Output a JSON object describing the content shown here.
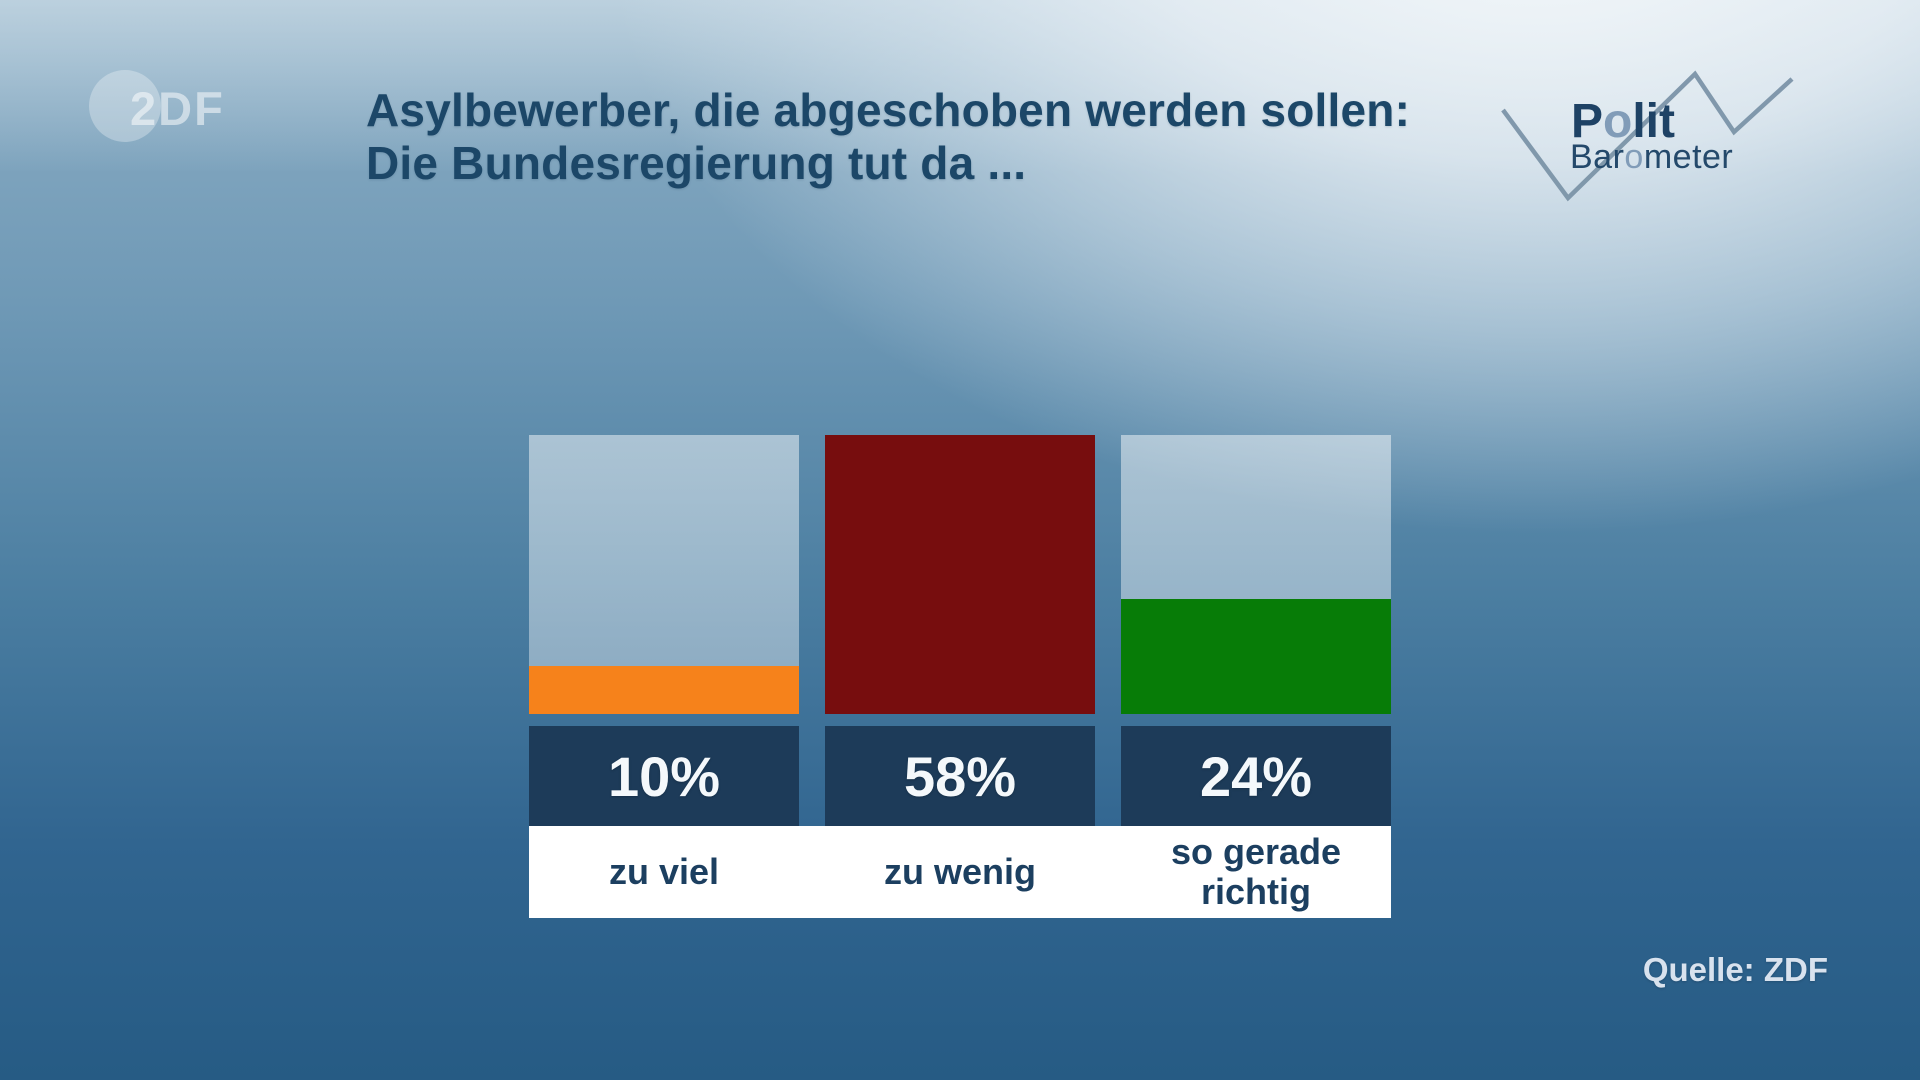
{
  "header": {
    "title_line1": "Asylbewerber, die abgeschoben werden sollen:",
    "title_line2": "Die Bundesregierung tut da ...",
    "zdf_logo_text": "2DF",
    "polit_logo": {
      "part1": "P",
      "accent1": "o",
      "part2": "lit",
      "part3": "Bar",
      "accent2": "o",
      "part4": "meter"
    }
  },
  "source_label": "Quelle: ZDF",
  "colors": {
    "title_text": "#1c4768",
    "value_badge_bg": "#1d3b59",
    "value_text": "#f4f8fb",
    "category_text": "#1c3f60",
    "label_band_bg": "#ffffff",
    "bar_track": "rgba(255,255,255,0.43)",
    "background_top_right": "#e7edf1",
    "background_bottom_left": "#265b84",
    "zigzag_line": "#7b93a8",
    "polit_accent": "#819cb8"
  },
  "chart_data": {
    "type": "bar",
    "title": "Asylbewerber, die abgeschoben werden sollen: Die Bundesregierung tut da ...",
    "categories": [
      "zu viel",
      "zu wenig",
      "so gerade richtig"
    ],
    "values": [
      10,
      58,
      24
    ],
    "value_labels": [
      "10%",
      "58%",
      "24%"
    ],
    "unit": "percent",
    "axis_max": 58,
    "bar_colors": [
      "#f6821b",
      "#770d0e",
      "#077c07"
    ],
    "legend": "none",
    "grid": false,
    "source": "Quelle: ZDF"
  }
}
